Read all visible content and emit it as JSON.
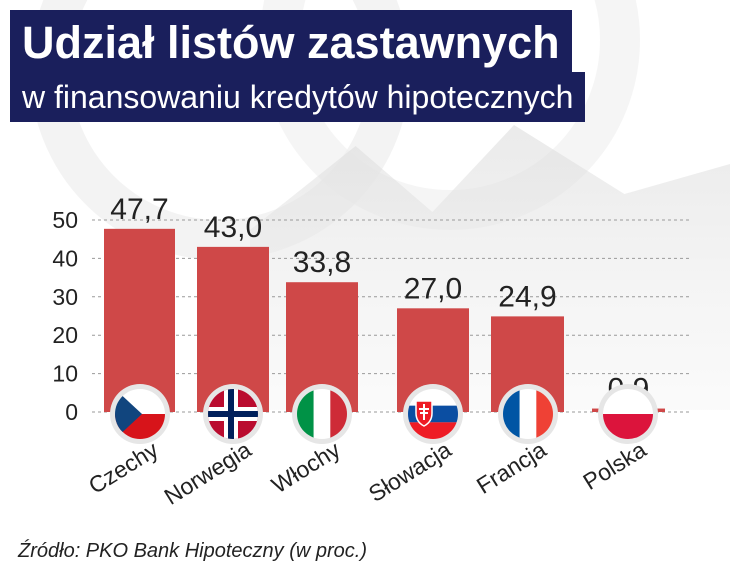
{
  "chart_data": {
    "type": "bar",
    "title": "Udział listów zastawnych",
    "subtitle": "w finansowaniu kredytów hipotecznych",
    "categories": [
      "Czechy",
      "Norwegia",
      "Włochy",
      "Słowacja",
      "Francja",
      "Polska"
    ],
    "values": [
      47.7,
      43.0,
      33.8,
      27.0,
      24.9,
      0.9
    ],
    "value_labels": [
      "47,7",
      "43,0",
      "33,8",
      "27,0",
      "24,9",
      "0,9"
    ],
    "yticks": [
      0,
      10,
      20,
      30,
      40,
      50
    ],
    "ytick_labels": [
      "0",
      "10",
      "20",
      "30",
      "40",
      "50"
    ],
    "ylim": [
      0,
      50
    ],
    "grid": true,
    "bar_color": "#cf4848",
    "flags": [
      "czech-flag-icon",
      "norway-flag-icon",
      "italy-flag-icon",
      "slovakia-flag-icon",
      "france-flag-icon",
      "poland-flag-icon"
    ]
  },
  "source": "Źródło: PKO Bank Hipoteczny (w proc.)",
  "colors": {
    "title_bg": "#1a1f5c",
    "title_text": "#ffffff",
    "grid": "#9a9a9a"
  }
}
